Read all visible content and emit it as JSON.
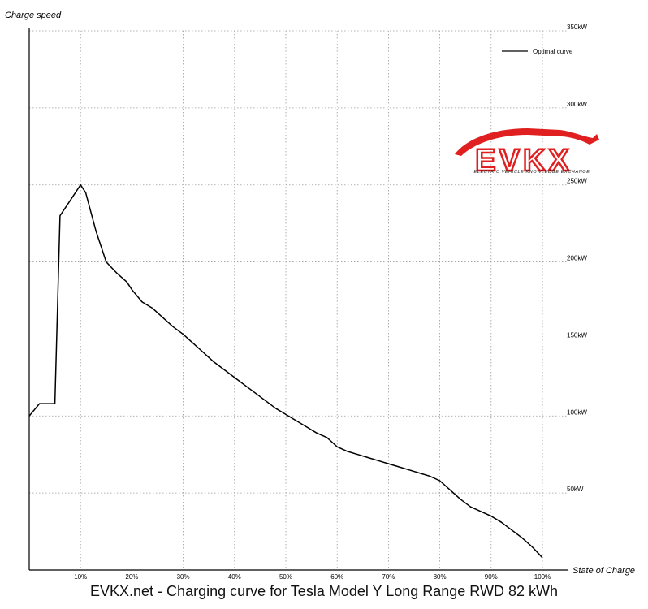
{
  "caption": "EVKX.net - Charging curve for Tesla Model Y Long Range RWD 82 kWh",
  "logo": {
    "wordmark": "EVKX",
    "tagline": "ELECTRIC VEHICLE KNOWLEDGE EXCHANGE",
    "colors": {
      "red": "#e02020",
      "dark": "#1a1a1a"
    }
  },
  "chart_data": {
    "type": "line",
    "xlabel": "State of Charge",
    "ylabel": "Charge speed",
    "xlim": [
      0,
      100
    ],
    "ylim": [
      0,
      350
    ],
    "grid": true,
    "legend_position": "top-right",
    "x_ticks": [
      {
        "value": 10,
        "label": "10%"
      },
      {
        "value": 20,
        "label": "20%"
      },
      {
        "value": 30,
        "label": "30%"
      },
      {
        "value": 40,
        "label": "40%"
      },
      {
        "value": 50,
        "label": "50%"
      },
      {
        "value": 60,
        "label": "60%"
      },
      {
        "value": 70,
        "label": "70%"
      },
      {
        "value": 80,
        "label": "80%"
      },
      {
        "value": 90,
        "label": "90%"
      },
      {
        "value": 100,
        "label": "100%"
      }
    ],
    "y_ticks": [
      {
        "value": 50,
        "label": "50kW"
      },
      {
        "value": 100,
        "label": "100kW"
      },
      {
        "value": 150,
        "label": "150kW"
      },
      {
        "value": 200,
        "label": "200kW"
      },
      {
        "value": 250,
        "label": "250kW"
      },
      {
        "value": 300,
        "label": "300kW"
      },
      {
        "value": 350,
        "label": "350kW"
      }
    ],
    "series": [
      {
        "name": "Optimal curve",
        "color": "#000000",
        "x": [
          0,
          2,
          5,
          6,
          8,
          10,
          11,
          13,
          15,
          17,
          19,
          20,
          22,
          24,
          26,
          28,
          30,
          32,
          34,
          36,
          38,
          40,
          42,
          44,
          46,
          48,
          50,
          52,
          54,
          56,
          58,
          59,
          60,
          62,
          64,
          66,
          68,
          70,
          72,
          74,
          76,
          78,
          80,
          82,
          84,
          86,
          88,
          90,
          92,
          94,
          96,
          98,
          100
        ],
        "y": [
          100,
          108,
          108,
          230,
          240,
          250,
          245,
          220,
          200,
          193,
          187,
          182,
          174,
          170,
          164,
          158,
          153,
          147,
          141,
          135,
          130,
          125,
          120,
          115,
          110,
          105,
          101,
          97,
          93,
          89,
          86,
          83,
          80,
          77,
          75,
          73,
          71,
          69,
          67,
          65,
          63,
          61,
          58,
          52,
          46,
          41,
          38,
          35,
          31,
          26,
          21,
          15,
          8
        ]
      }
    ]
  }
}
